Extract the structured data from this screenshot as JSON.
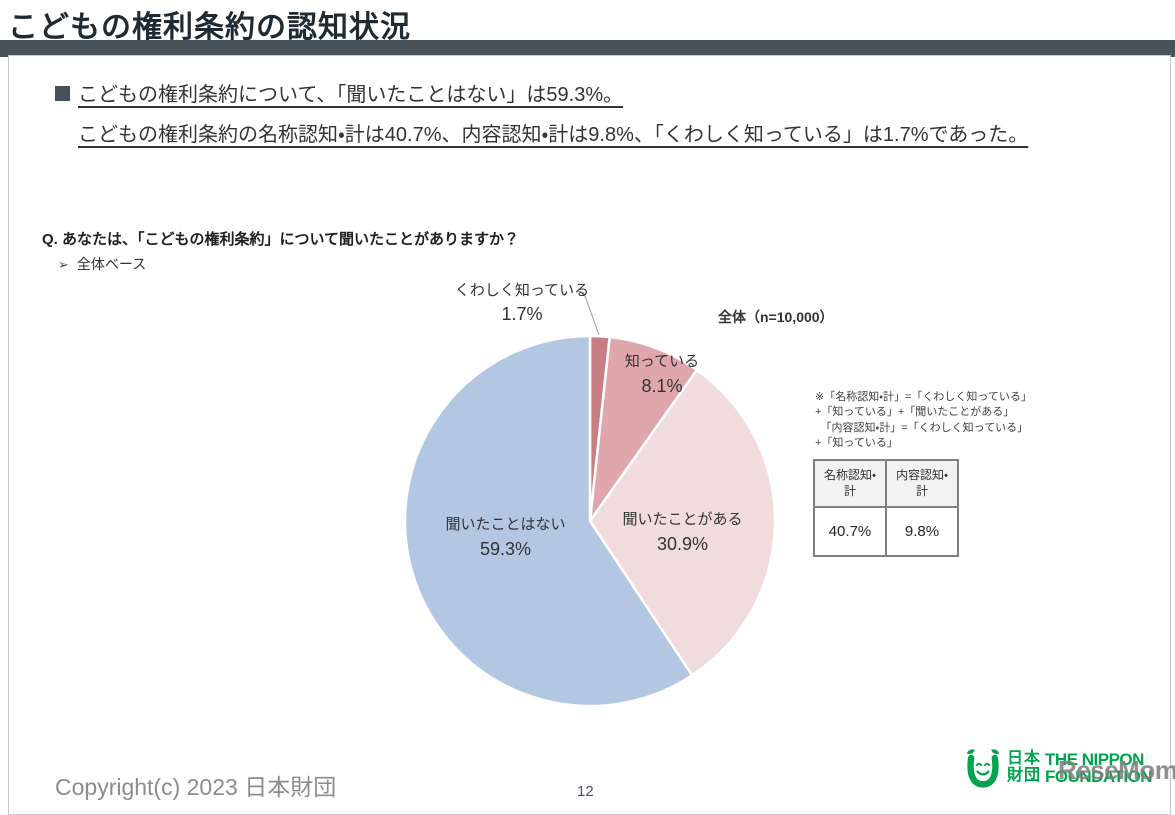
{
  "header": {
    "title": "こどもの権利条約の認知状況",
    "accent_bar_color": "#47525B"
  },
  "summary": {
    "line1": "こどもの権利条約について、「聞いたことはない」は59.3%。",
    "line2": "こどもの権利条約の名称認知・計は40.7%、内容認知・計は9.8%、「くわしく知っている」は1.7%であった。"
  },
  "question": {
    "label": "Q. あなたは、「こどもの権利条約」について聞いたことがありますか？",
    "base_marker": "➢",
    "base_label": "全体ベース"
  },
  "chart_data": {
    "type": "pie",
    "title": "全体（n=10,000）",
    "start_angle_deg": 0,
    "direction": "clockwise",
    "legend_position": "labels-on-chart",
    "slices": [
      {
        "label": "くわしく知っている",
        "value": 1.7,
        "display": "1.7%",
        "color": "#C97E83"
      },
      {
        "label": "知っている",
        "value": 8.1,
        "display": "8.1%",
        "color": "#DFA6AB"
      },
      {
        "label": "聞いたことがある",
        "value": 30.9,
        "display": "30.9%",
        "color": "#F1DCDD"
      },
      {
        "label": "聞いたことはない",
        "value": 59.3,
        "display": "59.3%",
        "color": "#B4C7E2"
      }
    ]
  },
  "note": {
    "text": "※「名称認知・計」=「くわしく知っている」\n+「知っている」+「聞いたことがある」\n　「内容認知・計」=「くわしく知っている」\n+「知っている」"
  },
  "table": {
    "headers": [
      "名称認知・計",
      "内容認知・計"
    ],
    "values": [
      "40.7%",
      "9.8%"
    ]
  },
  "footer": {
    "copyright": "Copyright(c)  2023 日本財団",
    "page_number": "12",
    "logo": {
      "jp_line1": "日本",
      "jp_line2": "財団",
      "en_line1": "THE NIPPON",
      "en_line2": "FOUNDATION",
      "brand_color": "#00A34E",
      "watermark": "ReseMom."
    }
  }
}
